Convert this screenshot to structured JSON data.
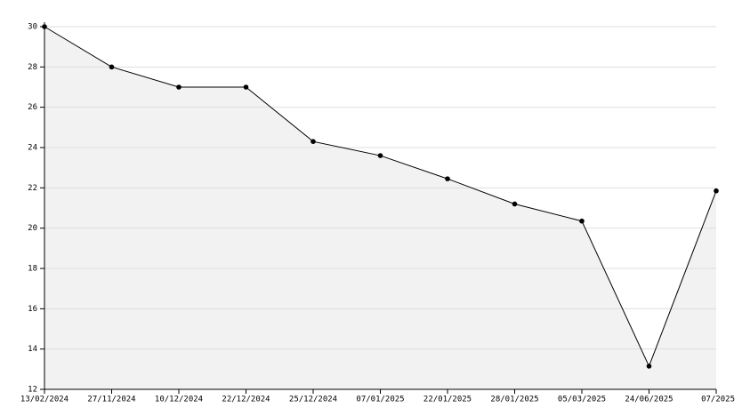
{
  "chart_data": {
    "type": "area",
    "categories": [
      "13/02/2024",
      "27/11/2024",
      "10/12/2024",
      "22/12/2024",
      "25/12/2024",
      "07/01/2025",
      "22/01/2025",
      "28/01/2025",
      "05/03/2025",
      "24/06/2025",
      "07/2025"
    ],
    "values": [
      30,
      28,
      27,
      27,
      24.3,
      23.6,
      22.45,
      21.2,
      20.35,
      13.15,
      21.85
    ],
    "color": "#000000",
    "fill_color": "#f2f2f2",
    "ylim": [
      12,
      30
    ],
    "yticks": [
      12,
      14,
      16,
      18,
      20,
      22,
      24,
      26,
      28,
      30
    ],
    "grid": true
  }
}
